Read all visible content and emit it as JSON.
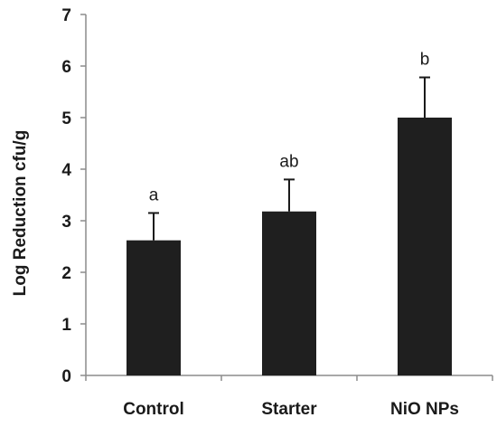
{
  "chart_data": {
    "type": "bar",
    "categories": [
      "Control",
      "Starter",
      "NiO NPs"
    ],
    "values": [
      2.62,
      3.18,
      5.0
    ],
    "error_upper": [
      0.53,
      0.62,
      0.78
    ],
    "significance_labels": [
      "a",
      "ab",
      "b"
    ],
    "title": "",
    "xlabel": "",
    "ylabel": "Log Reduction cfu/g",
    "ylim": [
      0,
      7
    ],
    "yticks": [
      "0",
      "1",
      "2",
      "3",
      "4",
      "5",
      "6",
      "7"
    ],
    "grid": false,
    "bar_color": "#1f1f1f"
  }
}
